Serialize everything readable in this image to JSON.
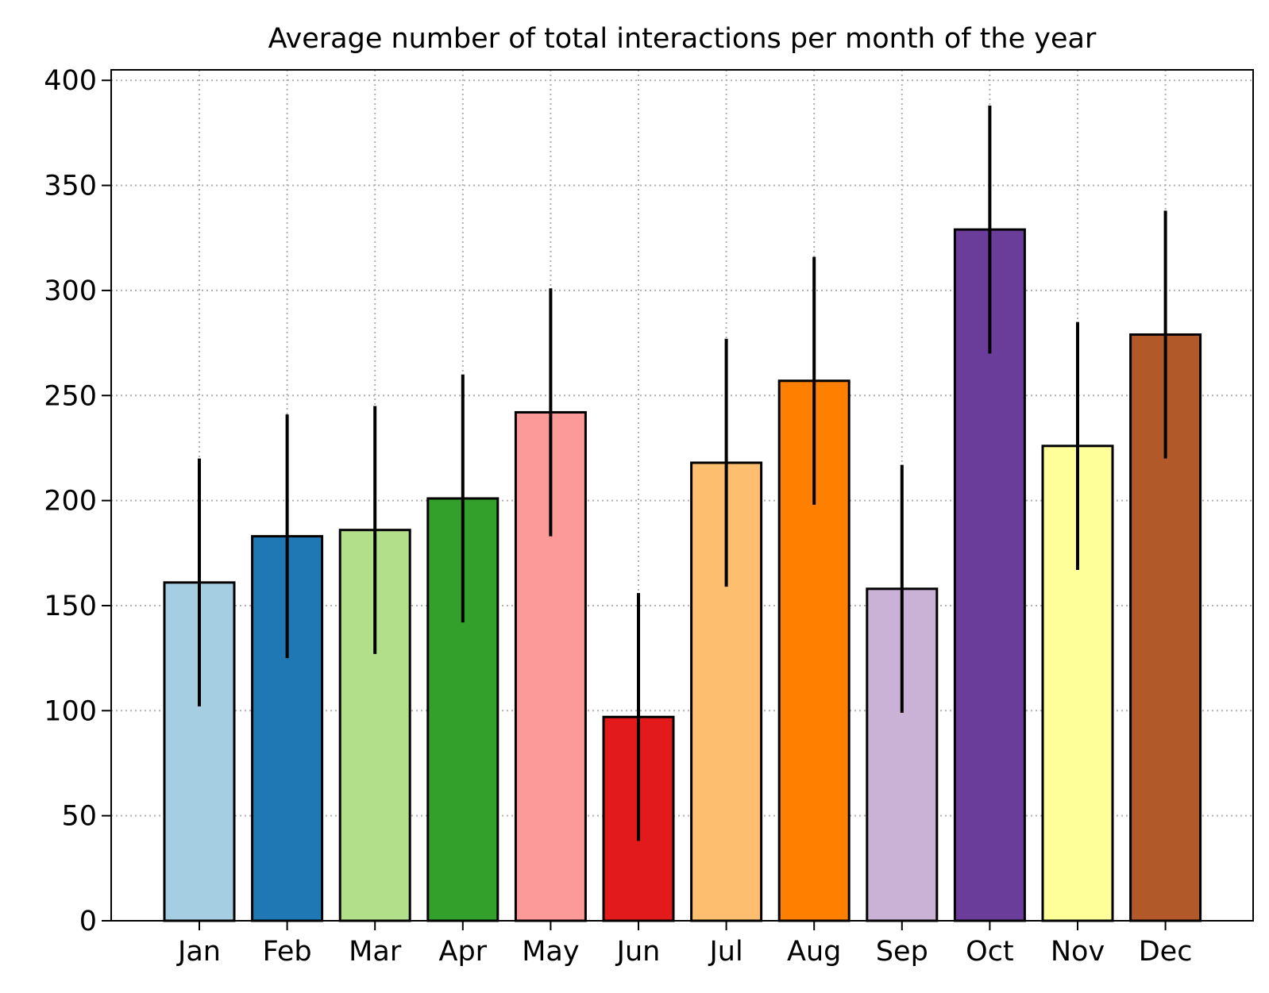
{
  "chart_data": {
    "type": "bar",
    "title": "Average number of total interactions per month of the year",
    "xlabel": "",
    "ylabel": "",
    "categories": [
      "Jan",
      "Feb",
      "Mar",
      "Apr",
      "May",
      "Jun",
      "Jul",
      "Aug",
      "Sep",
      "Oct",
      "Nov",
      "Dec"
    ],
    "values": [
      161,
      183,
      186,
      201,
      242,
      97,
      218,
      257,
      158,
      329,
      226,
      279
    ],
    "errors": [
      59,
      58,
      59,
      59,
      59,
      59,
      59,
      59,
      59,
      59,
      59,
      59
    ],
    "colors": [
      "#a6cee3",
      "#1f78b4",
      "#b2df8a",
      "#33a02c",
      "#fb9a99",
      "#e31a1c",
      "#fdbf6f",
      "#ff7f00",
      "#cab2d6",
      "#6a3d9a",
      "#ffff99",
      "#b15928"
    ],
    "ylim": [
      0,
      405
    ],
    "yticks": [
      0,
      50,
      100,
      150,
      200,
      250,
      300,
      350,
      400
    ],
    "grid": true,
    "legend": "none"
  }
}
